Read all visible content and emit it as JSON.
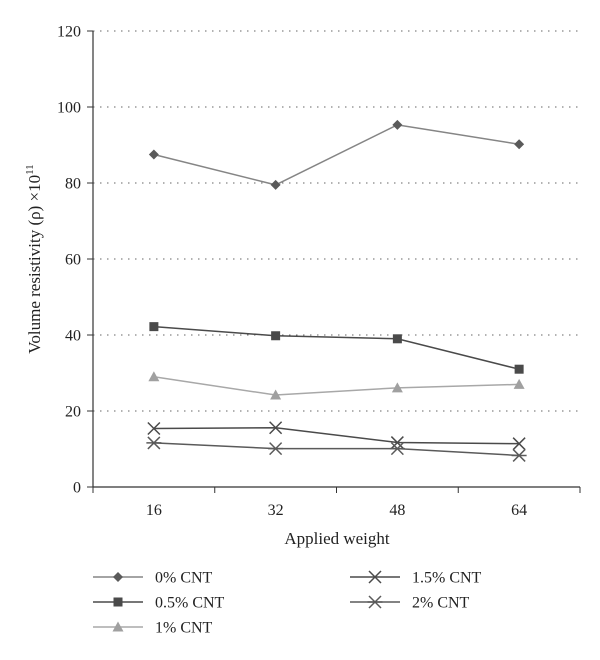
{
  "chart_data": {
    "type": "line",
    "title": "",
    "xlabel": "Applied weight",
    "ylabel": "Volume resistivity (ρ) ×10",
    "ylabel_superscript": "11",
    "categories": [
      "16",
      "32",
      "48",
      "64"
    ],
    "ylim": [
      0,
      120
    ],
    "yticks": [
      "0",
      "20",
      "40",
      "60",
      "80",
      "100",
      "120"
    ],
    "grid": "horizontal dotted",
    "legend_position": "bottom",
    "series": [
      {
        "name": "0% CNT",
        "values": [
          87.5,
          79.5,
          95.3,
          90.2
        ],
        "color": "#858585",
        "marker_color": "#5a5a5a",
        "marker": "diamond"
      },
      {
        "name": "0.5% CNT",
        "values": [
          42.2,
          39.8,
          39.0,
          31.0
        ],
        "color": "#4a4a4a",
        "marker_color": "#4a4a4a",
        "marker": "square"
      },
      {
        "name": "1% CNT",
        "values": [
          29.0,
          24.2,
          26.1,
          27.0
        ],
        "color": "#a8a8a8",
        "marker_color": "#a0a0a0",
        "marker": "triangle"
      },
      {
        "name": "1.5% CNT",
        "values": [
          15.4,
          15.6,
          11.7,
          11.4
        ],
        "color": "#4a4a4a",
        "marker_color": "#4a4a4a",
        "marker": "x"
      },
      {
        "name": "2% CNT",
        "values": [
          11.6,
          10.1,
          10.1,
          8.3
        ],
        "color": "#5a5a5a",
        "marker_color": "#5a5a5a",
        "marker": "asterisk"
      }
    ]
  }
}
